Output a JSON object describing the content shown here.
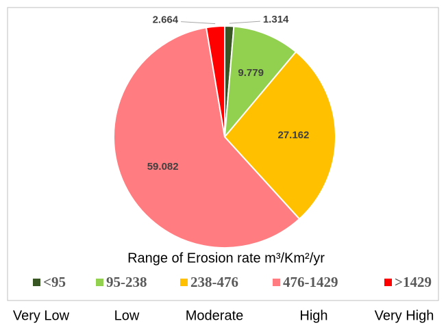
{
  "chart_data": {
    "type": "pie",
    "title": "Range of Erosion rate m³/Km²/yr",
    "unit_label": "%",
    "categories": [
      "<95",
      "95-238",
      "238-476",
      "476-1429",
      ">1429"
    ],
    "values": [
      1.314,
      9.779,
      27.162,
      59.082,
      2.664
    ],
    "colors": [
      "#375623",
      "#92d050",
      "#ffc000",
      "#ff7c80",
      "#ff0000"
    ],
    "class_names": [
      "Very Low",
      "Low",
      "Moderate",
      "High",
      "Very High"
    ]
  }
}
